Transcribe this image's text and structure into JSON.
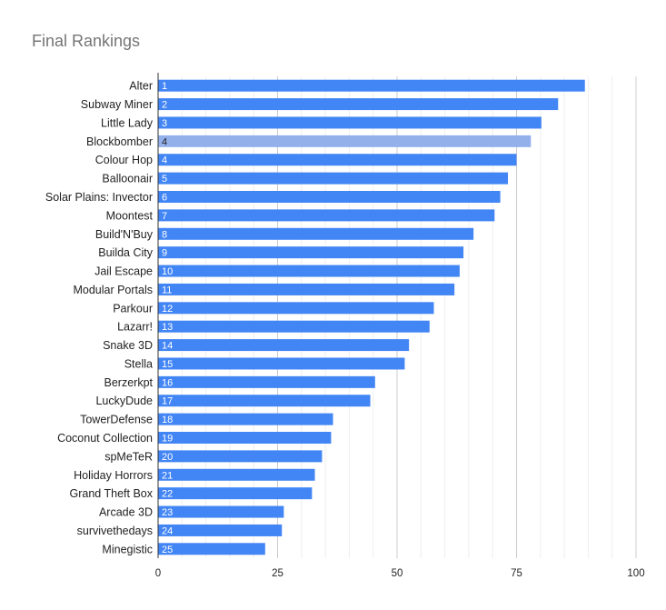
{
  "chart_data": {
    "type": "bar",
    "orientation": "horizontal",
    "title": "Final Rankings",
    "xlabel": "",
    "ylabel": "",
    "xlim": [
      0,
      100
    ],
    "xticks": [
      0,
      25,
      50,
      75,
      100
    ],
    "grid": true,
    "legend": "none",
    "colors": {
      "bar": "#4285f4",
      "highlight": "#93b0eb",
      "grid_major": "#cccccc",
      "grid_minor": "#eeeeee",
      "axis": "#333333",
      "label_on_bar": "#ffffff",
      "label_on_highlight": "#222222"
    },
    "categories": [
      "Alter",
      "Subway Miner",
      "Little Lady",
      "Blockbomber",
      "Colour Hop",
      "Balloonair",
      "Solar Plains: Invector",
      "Moontest",
      "Build'N'Buy",
      "Builda City",
      "Jail Escape",
      "Modular Portals",
      "Parkour",
      "Lazarr!",
      "Snake 3D",
      "Stella",
      "Berzerkpt",
      "LuckyDude",
      "TowerDefense",
      "Coconut Collection",
      "spMeTeR",
      "Holiday Horrors",
      "Grand Theft Box",
      "Arcade 3D",
      "survivethedays",
      "Minegistic"
    ],
    "values": [
      89.3,
      83.7,
      80.2,
      78.0,
      75.0,
      73.2,
      71.6,
      70.4,
      66.0,
      63.9,
      63.1,
      62.0,
      57.7,
      56.8,
      52.5,
      51.6,
      45.4,
      44.4,
      36.6,
      36.2,
      34.3,
      32.8,
      32.2,
      26.3,
      25.9,
      22.4
    ],
    "data_labels": [
      "1",
      "2",
      "3",
      "4",
      "4",
      "5",
      "6",
      "7",
      "8",
      "9",
      "10",
      "11",
      "12",
      "13",
      "14",
      "15",
      "16",
      "17",
      "18",
      "19",
      "20",
      "21",
      "22",
      "23",
      "24",
      "25"
    ],
    "highlighted_index": 3
  }
}
